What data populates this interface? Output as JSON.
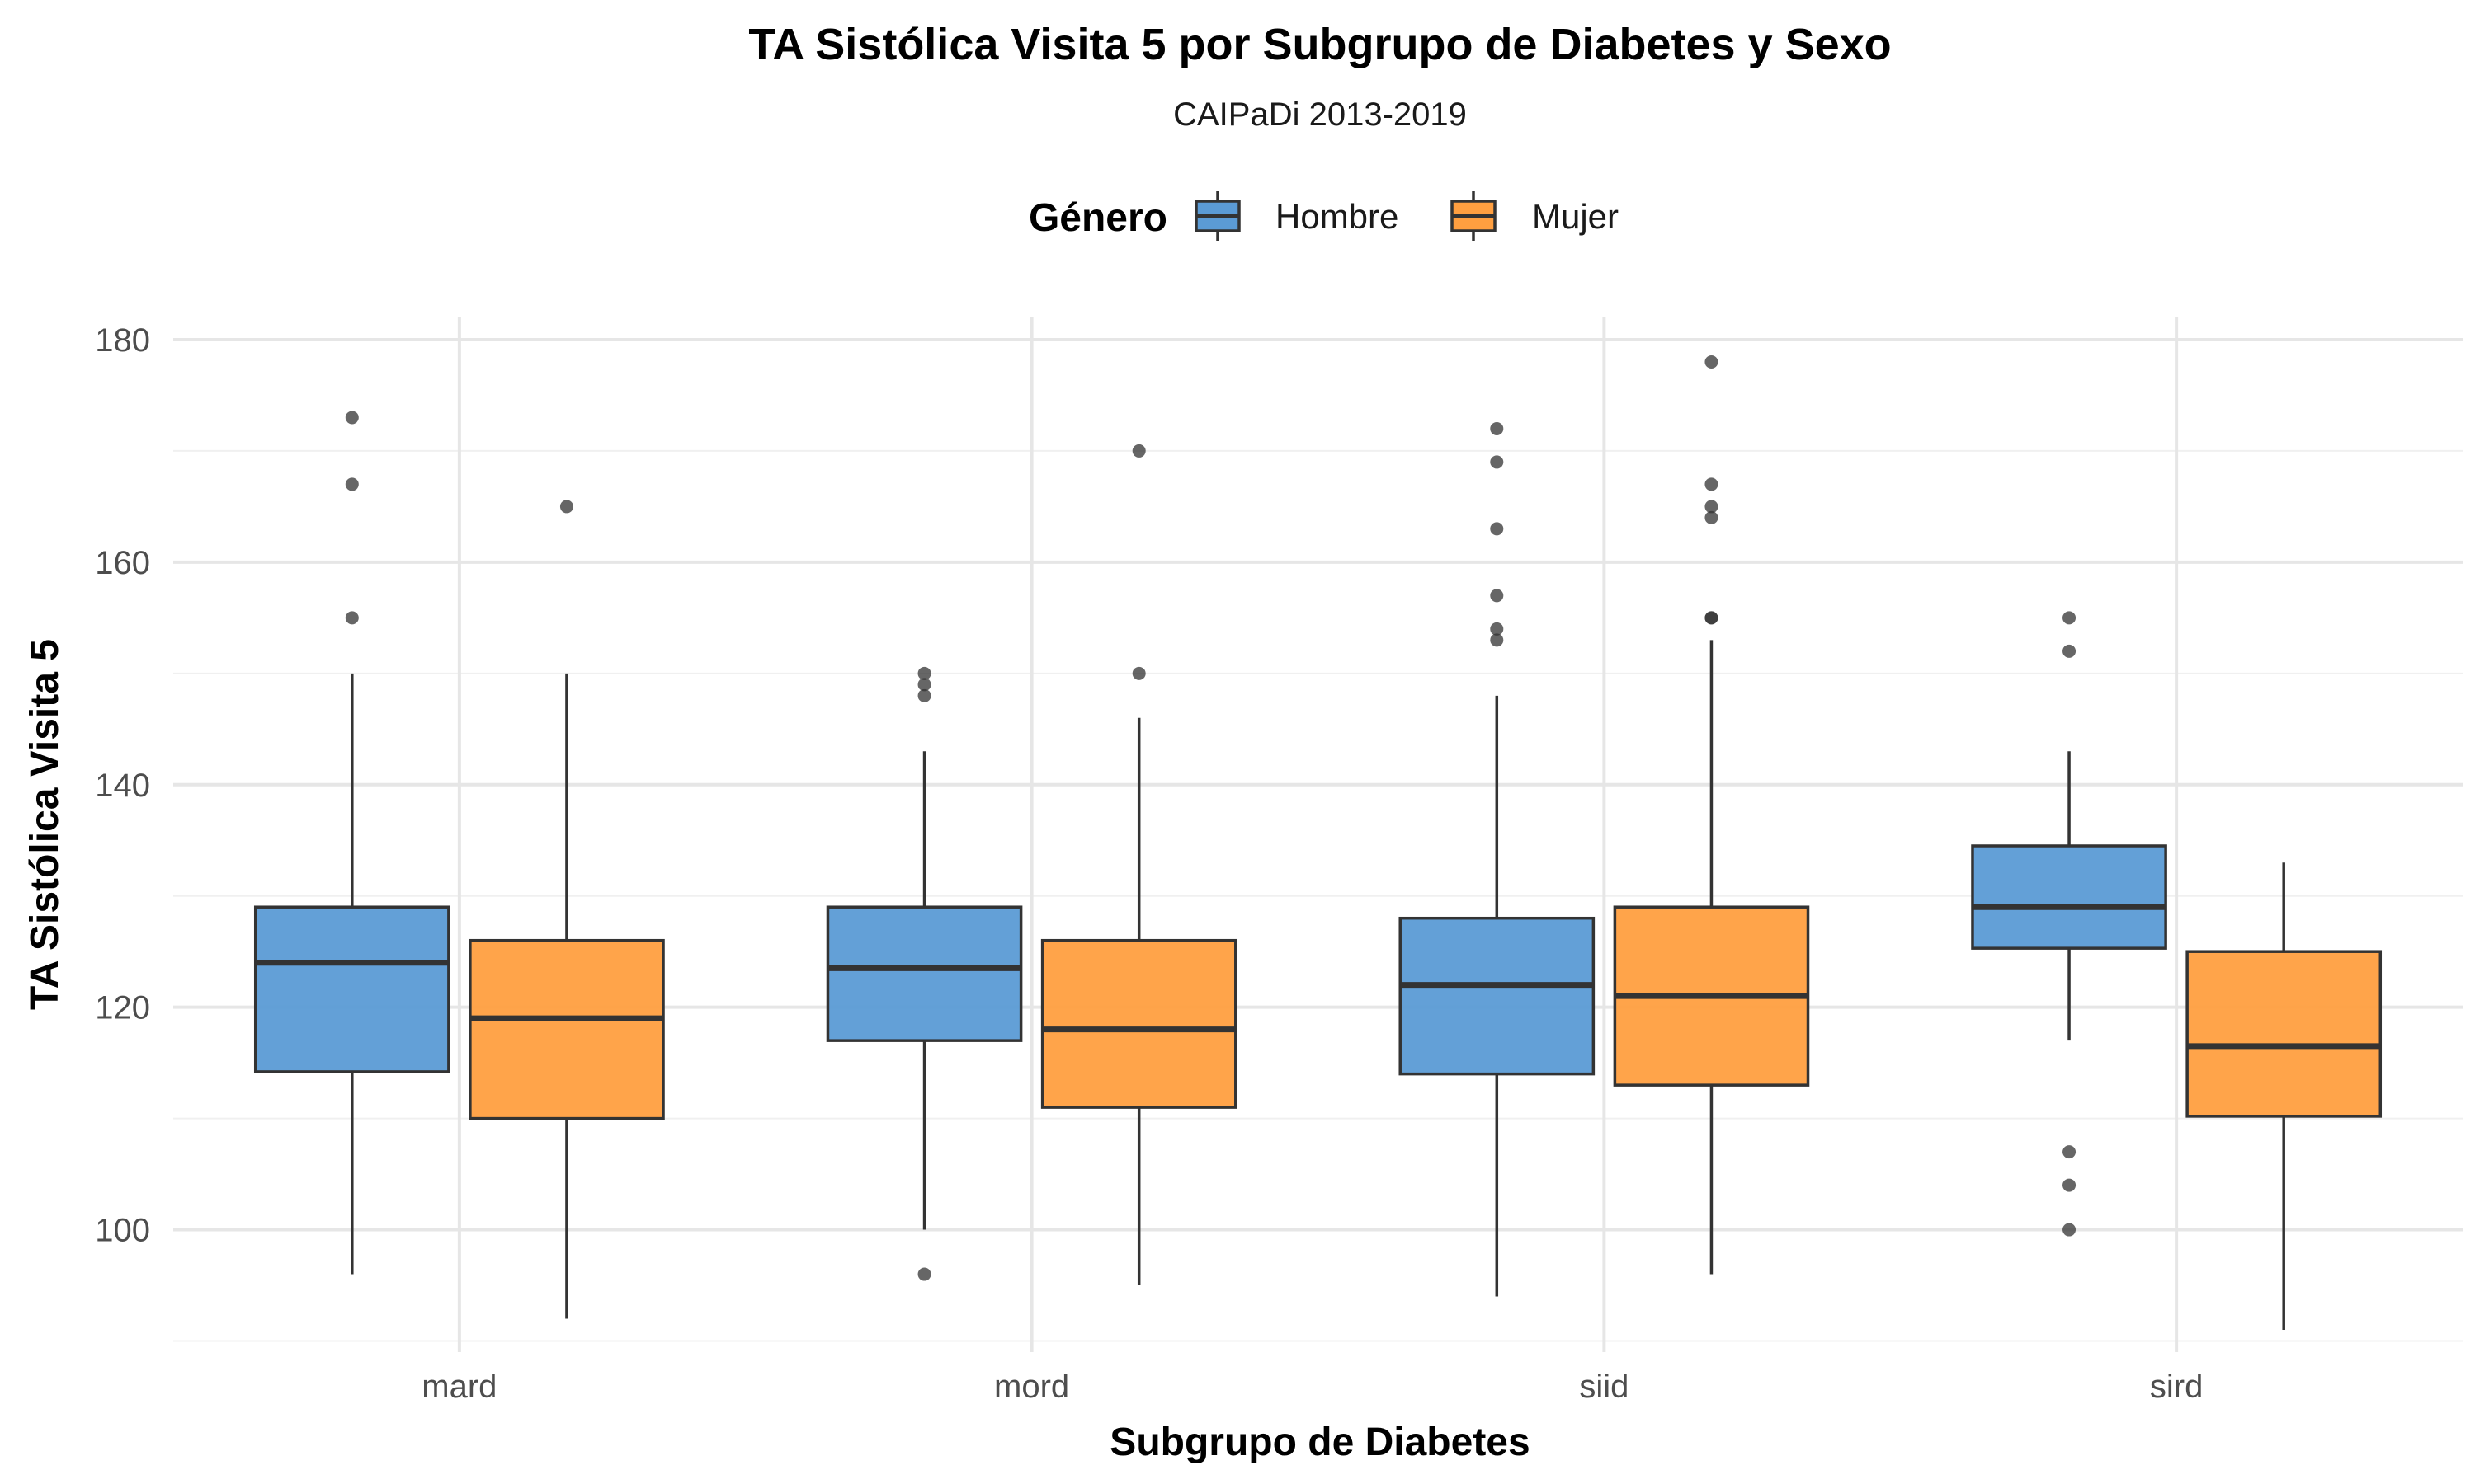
{
  "chart_data": {
    "type": "boxplot",
    "title": "TA Sistólica Visita 5 por Subgrupo de Diabetes y Sexo",
    "subtitle": "CAIPaDi 2013-2019",
    "xlabel": "Subgrupo de Diabetes",
    "ylabel": "TA Sistólica Visita 5",
    "ylim": [
      89,
      182
    ],
    "yticks": [
      100,
      120,
      140,
      160,
      180
    ],
    "grid": true,
    "legend": {
      "title": "Género",
      "position": "top"
    },
    "categories": [
      "mard",
      "mord",
      "siid",
      "sird"
    ],
    "series": [
      {
        "name": "Hombre",
        "color": "#5b9bd5",
        "boxes": [
          {
            "category": "mard",
            "whisker_low": 96,
            "q1": 114.2,
            "median": 124,
            "q3": 129,
            "whisker_high": 150,
            "outliers": [
              155,
              167,
              173
            ]
          },
          {
            "category": "mord",
            "whisker_low": 100,
            "q1": 117,
            "median": 123.5,
            "q3": 129,
            "whisker_high": 143,
            "outliers": [
              96,
              148,
              149,
              150
            ]
          },
          {
            "category": "siid",
            "whisker_low": 94,
            "q1": 114,
            "median": 122,
            "q3": 128,
            "whisker_high": 148,
            "outliers": [
              153,
              154,
              157,
              163,
              169,
              172
            ]
          },
          {
            "category": "sird",
            "whisker_low": 117,
            "q1": 125.3,
            "median": 129,
            "q3": 134.5,
            "whisker_high": 143,
            "outliers": [
              100,
              104,
              107,
              152,
              155
            ]
          }
        ]
      },
      {
        "name": "Mujer",
        "color": "#ff9f40",
        "boxes": [
          {
            "category": "mard",
            "whisker_low": 92,
            "q1": 110,
            "median": 119,
            "q3": 126,
            "whisker_high": 150,
            "outliers": [
              165
            ]
          },
          {
            "category": "mord",
            "whisker_low": 95,
            "q1": 111,
            "median": 118,
            "q3": 126,
            "whisker_high": 146,
            "outliers": [
              150,
              170
            ]
          },
          {
            "category": "siid",
            "whisker_low": 96,
            "q1": 113,
            "median": 121,
            "q3": 129,
            "whisker_high": 153,
            "outliers": [
              155,
              155,
              164,
              165,
              167,
              178
            ]
          },
          {
            "category": "sird",
            "whisker_low": 91,
            "q1": 110.2,
            "median": 116.5,
            "q3": 125,
            "whisker_high": 133,
            "outliers": []
          }
        ]
      }
    ]
  }
}
